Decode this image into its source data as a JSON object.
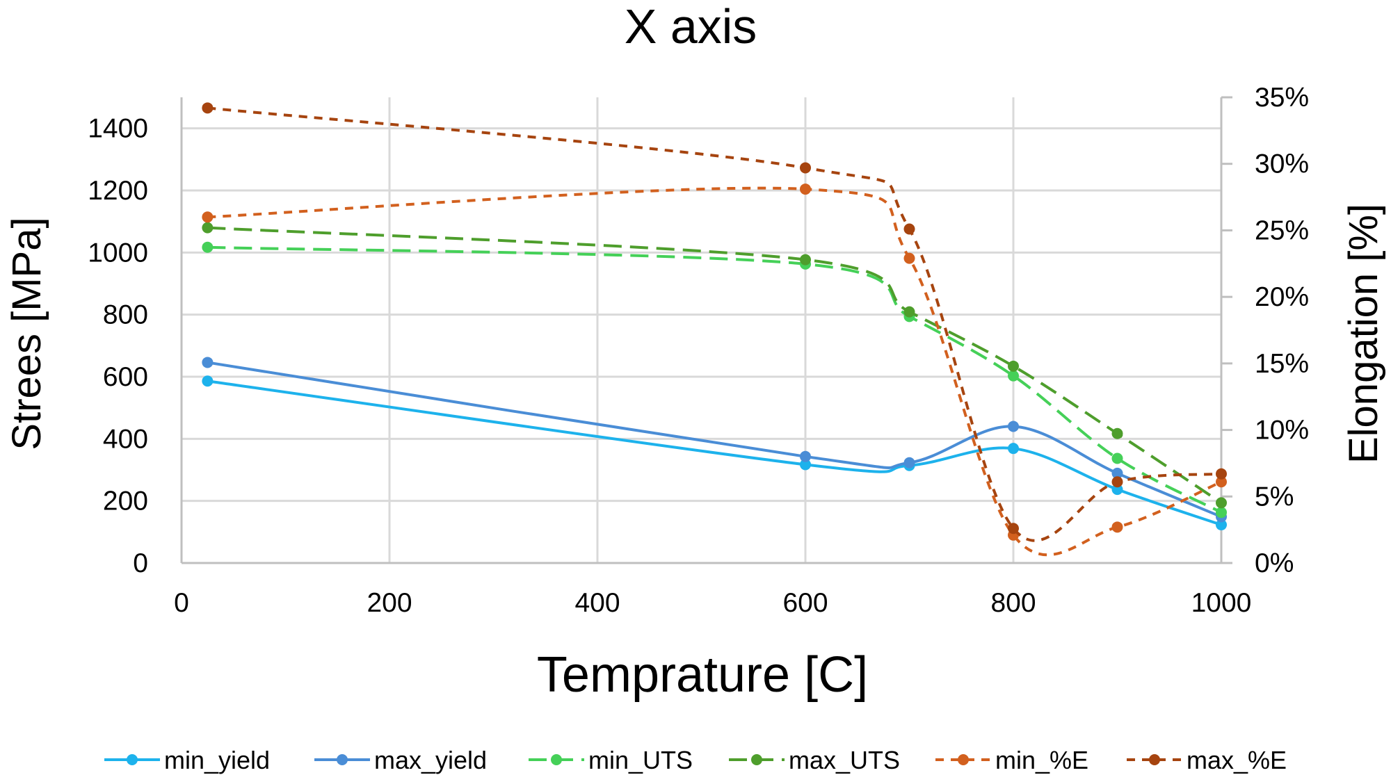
{
  "chart_data": {
    "type": "line",
    "title": "X axis",
    "xlabel": "Temprature [C]",
    "ylabel": "Strees [MPa]",
    "y2label": "Elongation [%]",
    "xlim": [
      0,
      1000
    ],
    "ylim": [
      0,
      1500
    ],
    "y2lim": [
      0,
      35
    ],
    "xticks": [
      0,
      200,
      400,
      600,
      800,
      1000
    ],
    "yticks": [
      0,
      200,
      400,
      600,
      800,
      1000,
      1200,
      1400
    ],
    "y2ticks": [
      "0%",
      "5%",
      "10%",
      "15%",
      "20%",
      "25%",
      "30%",
      "35%"
    ],
    "grid": true,
    "legend_position": "bottom",
    "x": [
      25,
      600,
      700,
      800,
      900,
      1000
    ],
    "series": [
      {
        "name": "min_yield",
        "axis": "left",
        "color": "#1db2ec",
        "dash": "solid",
        "values": [
          586,
          317,
          314,
          369,
          237,
          123
        ]
      },
      {
        "name": "max_yield",
        "axis": "left",
        "color": "#4a8dd6",
        "dash": "solid",
        "values": [
          646,
          343,
          323,
          440,
          289,
          149
        ]
      },
      {
        "name": "min_UTS",
        "axis": "left",
        "color": "#45d058",
        "dash": "long",
        "values": [
          1017,
          963,
          794,
          603,
          337,
          163
        ]
      },
      {
        "name": "max_UTS",
        "axis": "left",
        "color": "#4e9e2c",
        "dash": "long",
        "values": [
          1080,
          977,
          809,
          634,
          417,
          194
        ]
      },
      {
        "name": "min_%E",
        "axis": "right",
        "color": "#d2601e",
        "dash": "short",
        "values": [
          26.0,
          28.1,
          22.9,
          2.1,
          2.7,
          6.1
        ]
      },
      {
        "name": "max_%E",
        "axis": "right",
        "color": "#a6440f",
        "dash": "short",
        "values": [
          34.2,
          29.7,
          25.1,
          2.6,
          6.1,
          6.7
        ]
      }
    ]
  }
}
